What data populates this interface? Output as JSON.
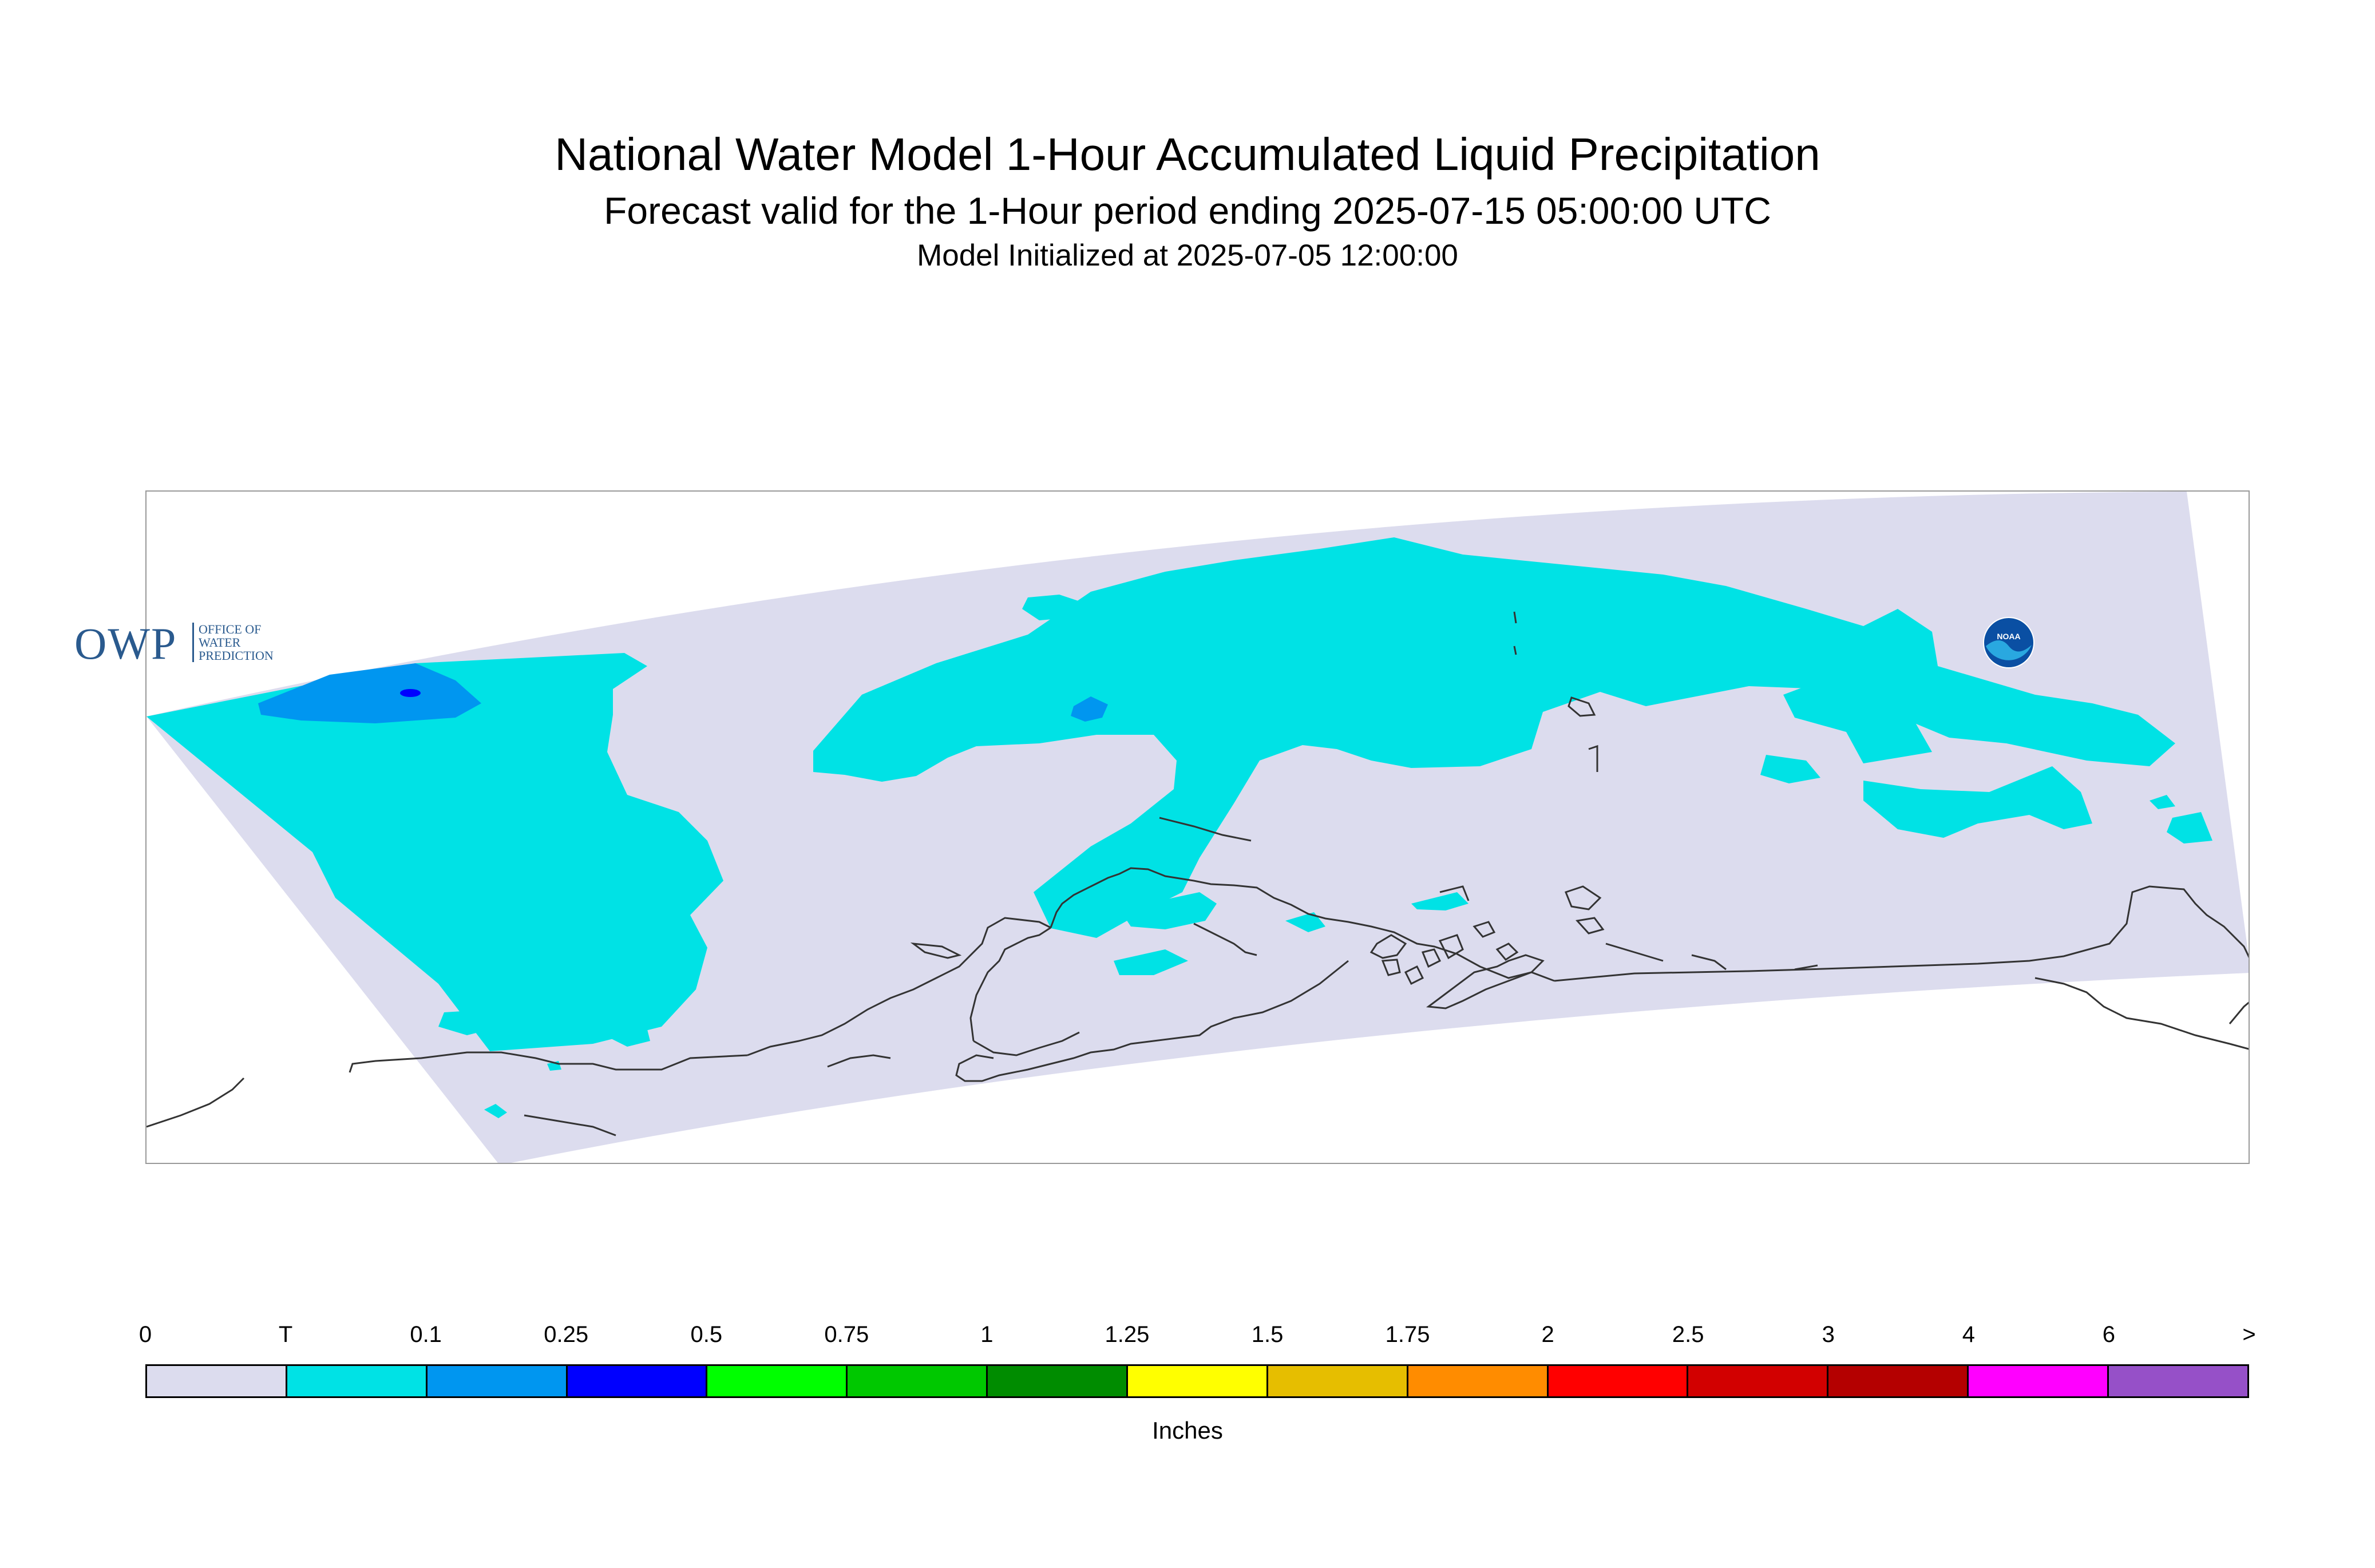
{
  "title": "National Water Model 1-Hour Accumulated Liquid Precipitation",
  "subtitle": "Forecast valid for the 1-Hour period ending 2025-07-15 05:00:00 UTC",
  "init_line": "Model Initialized at 2025-07-05 12:00:00",
  "logos": {
    "owp_main": "OWP",
    "owp_sub_lines": [
      "OFFICE OF",
      "WATER",
      "PREDICTION"
    ],
    "noaa": "NOAA"
  },
  "colors": {
    "domain_fill": "#dcdcee",
    "trace": "#00e2e5",
    "light_blue": "#0096f0",
    "dark_blue": "#0000ff",
    "coastline": "#333333"
  },
  "legend": {
    "unit": "Inches",
    "tick_labels": [
      "0",
      "T",
      "0.1",
      "0.25",
      "0.5",
      "0.75",
      "1",
      "1.25",
      "1.5",
      "1.75",
      "2",
      "2.5",
      "3",
      "4",
      "6",
      ">"
    ],
    "colors": [
      "#dcdcee",
      "#00e2e5",
      "#0096f0",
      "#0000ff",
      "#00ff00",
      "#00c800",
      "#008c00",
      "#ffff00",
      "#e6be00",
      "#ff8c00",
      "#ff0000",
      "#d20000",
      "#b40000",
      "#ff00ff",
      "#9650c8"
    ]
  }
}
